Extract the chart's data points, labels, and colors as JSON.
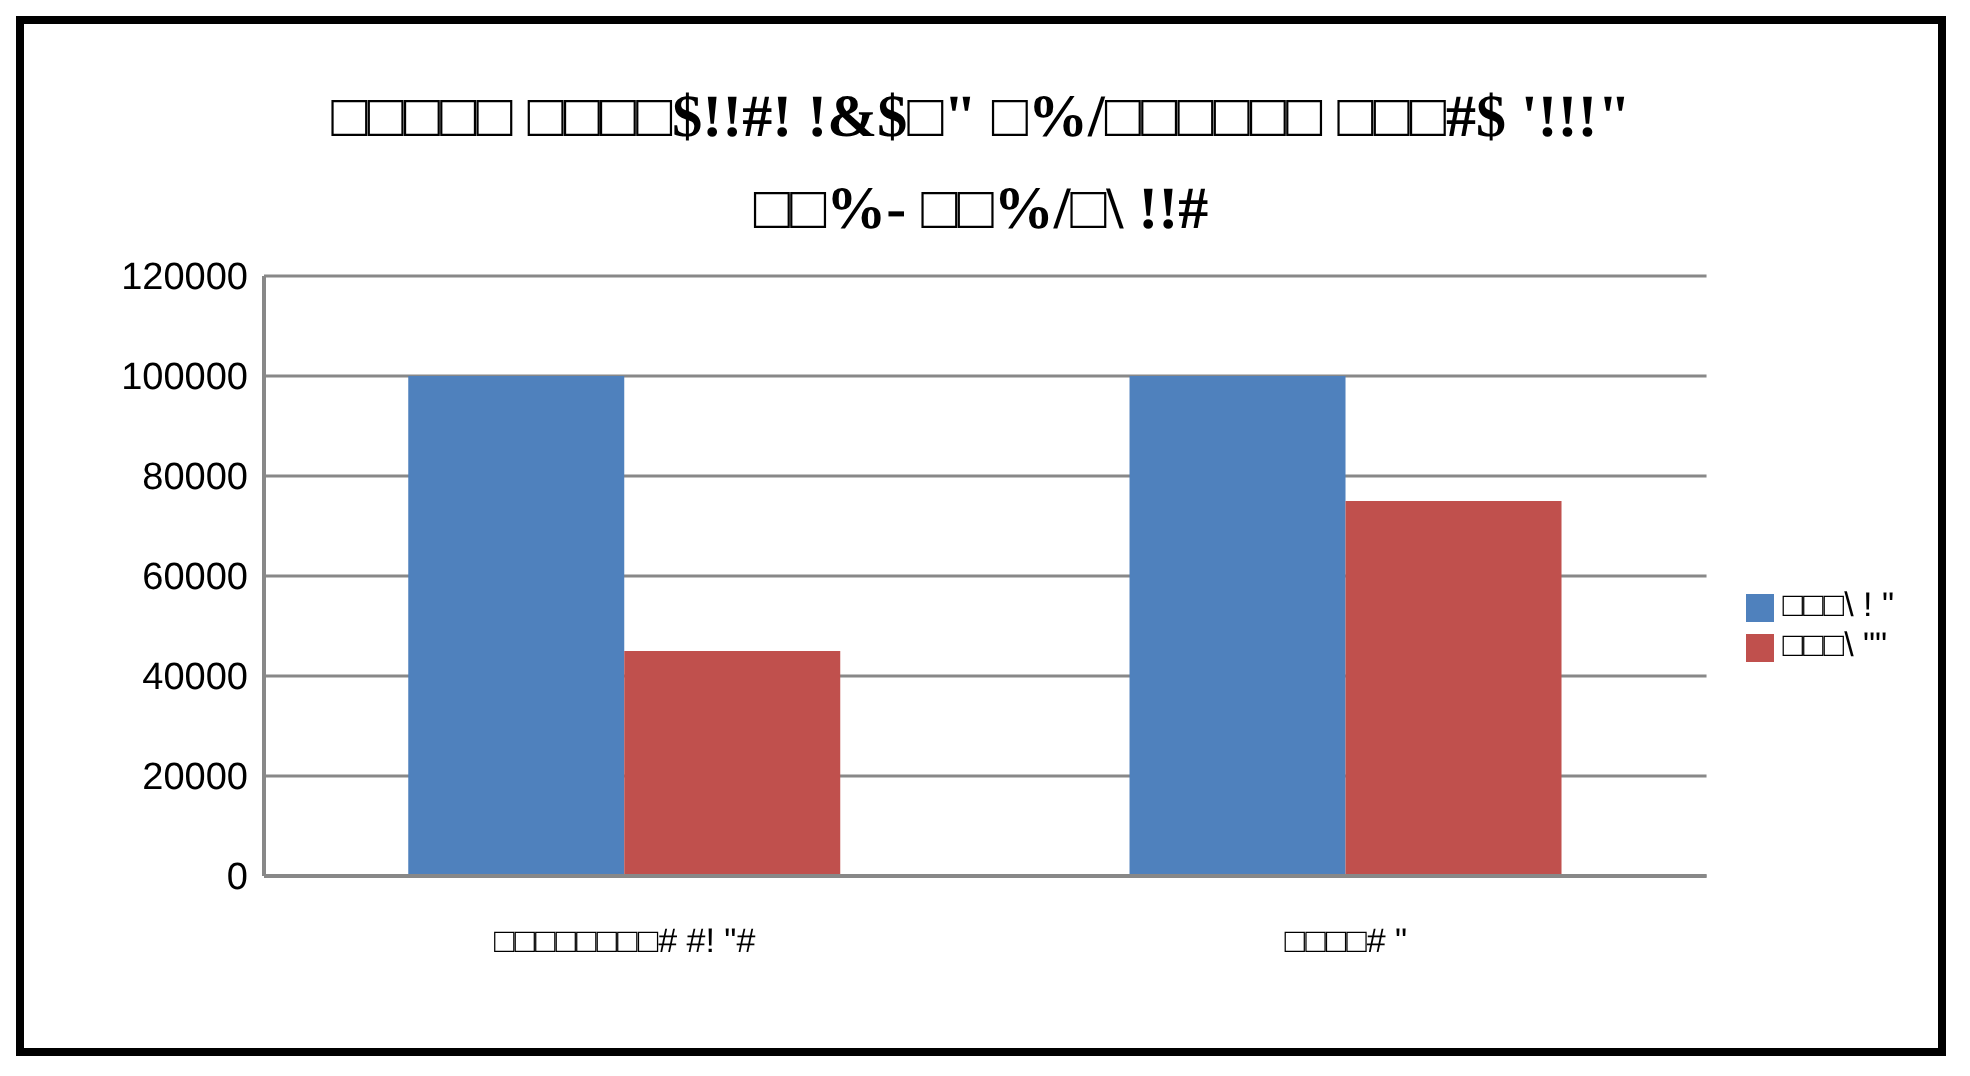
{
  "chart_data": {
    "type": "bar",
    "title": "□□□□□ □□□□$!!#! !&$□\" □%/□□□□□□ □□□#$ '!!!\"\n□□%- □□%/□\\ !!#",
    "categories": [
      "□□□□□□□□# #! \"#",
      "□□□□# \""
    ],
    "series": [
      {
        "name": "□□□\\ ! \"",
        "color": "#4f81bd",
        "values": [
          100000,
          100000
        ]
      },
      {
        "name": "□□□\\ \"\"",
        "color": "#c0504d",
        "values": [
          45000,
          75000
        ]
      }
    ],
    "ylim": [
      0,
      120000
    ],
    "yticks": [
      0,
      20000,
      40000,
      60000,
      80000,
      100000,
      120000
    ],
    "grid": "y",
    "legend": "right"
  }
}
